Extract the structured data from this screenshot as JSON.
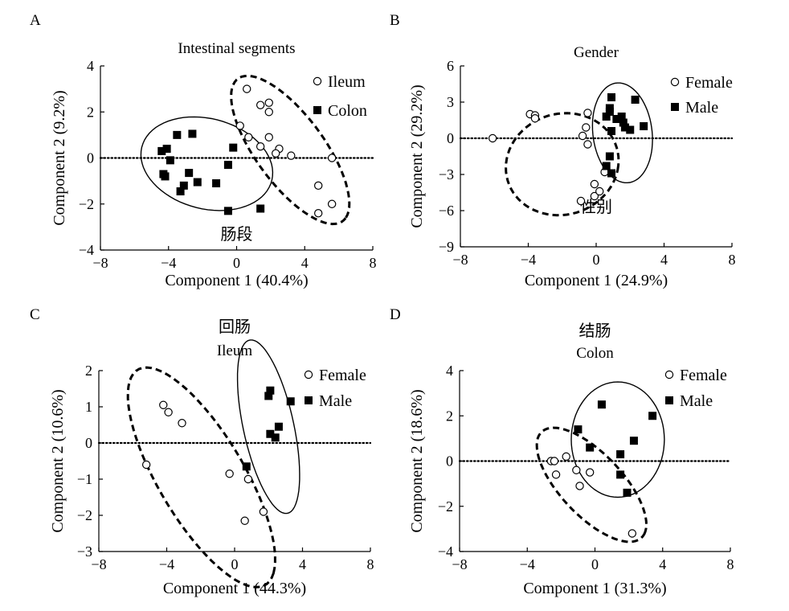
{
  "chart_data": [
    {
      "panel": "A",
      "type": "scatter",
      "title_zh": "肠段",
      "title": "Intestinal segments",
      "xlabel": "Component 1 (40.4%)",
      "ylabel": "Component 2 (9.2%)",
      "xlim": [
        -8,
        8
      ],
      "ylim": [
        -4,
        4
      ],
      "xticks": [
        -8,
        -4,
        0,
        4,
        8
      ],
      "xtick_labels": [
        "−8",
        "−4",
        "0",
        "4",
        "8"
      ],
      "yticks": [
        -4,
        -2,
        0,
        2,
        4
      ],
      "ytick_labels": [
        "−4",
        "−2",
        "0",
        "2",
        "4"
      ],
      "legend_position": "top-right",
      "series": [
        {
          "name": "Ileum",
          "marker": "open-circle",
          "points": [
            [
              0.6,
              3.0
            ],
            [
              1.4,
              2.3
            ],
            [
              1.9,
              2.4
            ],
            [
              1.9,
              2.0
            ],
            [
              0.2,
              1.4
            ],
            [
              0.7,
              0.9
            ],
            [
              1.9,
              0.9
            ],
            [
              1.4,
              0.5
            ],
            [
              2.5,
              0.4
            ],
            [
              2.3,
              0.2
            ],
            [
              3.2,
              0.1
            ],
            [
              5.6,
              0.0
            ],
            [
              4.8,
              -1.2
            ],
            [
              5.6,
              -2.0
            ],
            [
              4.8,
              -2.4
            ]
          ],
          "ellipse": {
            "cx": 3.15,
            "cy": 0.35,
            "rx": 4.4,
            "ry": 1.75,
            "angle_deg": -42,
            "style": "dashed"
          }
        },
        {
          "name": "Colon",
          "marker": "filled-square",
          "points": [
            [
              -4.4,
              0.3
            ],
            [
              -4.1,
              0.4
            ],
            [
              -3.5,
              1.0
            ],
            [
              -2.6,
              1.05
            ],
            [
              -4.3,
              -0.7
            ],
            [
              -4.2,
              -0.8
            ],
            [
              -3.9,
              -0.1
            ],
            [
              -2.8,
              -0.65
            ],
            [
              -3.1,
              -1.2
            ],
            [
              -3.3,
              -1.45
            ],
            [
              -2.3,
              -1.05
            ],
            [
              -1.2,
              -1.1
            ],
            [
              -0.5,
              -0.3
            ],
            [
              -0.2,
              0.45
            ],
            [
              -0.5,
              -2.3
            ],
            [
              1.4,
              -2.2
            ]
          ],
          "ellipse": {
            "cx": -1.75,
            "cy": -0.25,
            "rx": 3.9,
            "ry": 1.98,
            "angle_deg": -8,
            "style": "solid"
          }
        }
      ]
    },
    {
      "panel": "B",
      "type": "scatter",
      "title_zh": "性别",
      "title": "Gender",
      "xlabel": "Component 1 (24.9%)",
      "ylabel": "Component 2 (29.2%)",
      "xlim": [
        -8,
        8
      ],
      "ylim": [
        -9,
        6
      ],
      "xticks": [
        -8,
        -4,
        0,
        4,
        8
      ],
      "xtick_labels": [
        "−8",
        "−4",
        "0",
        "4",
        "8"
      ],
      "yticks": [
        -9,
        -6,
        -3,
        0,
        3,
        6
      ],
      "ytick_labels": [
        "−9",
        "−6",
        "−3",
        "0",
        "3",
        "6"
      ],
      "legend_position": "top-right",
      "series": [
        {
          "name": "Female",
          "marker": "open-circle",
          "points": [
            [
              -6.1,
              0.0
            ],
            [
              -3.9,
              2.0
            ],
            [
              -3.6,
              1.9
            ],
            [
              -3.6,
              1.65
            ],
            [
              -0.5,
              2.1
            ],
            [
              -0.6,
              0.9
            ],
            [
              -0.8,
              0.2
            ],
            [
              -0.5,
              -0.5
            ],
            [
              -0.1,
              -3.8
            ],
            [
              -0.1,
              -4.8
            ],
            [
              0.2,
              -4.4
            ],
            [
              -0.9,
              -5.2
            ],
            [
              0.5,
              -2.8
            ]
          ],
          "ellipse": {
            "cx": -2.0,
            "cy": -2.15,
            "rx": 3.3,
            "ry": 4.25,
            "angle_deg": -8,
            "style": "dashed"
          }
        },
        {
          "name": "Male",
          "marker": "filled-square",
          "points": [
            [
              0.9,
              3.4
            ],
            [
              0.8,
              2.5
            ],
            [
              0.6,
              1.8
            ],
            [
              0.8,
              2.2
            ],
            [
              1.5,
              1.8
            ],
            [
              1.2,
              1.6
            ],
            [
              2.3,
              3.2
            ],
            [
              1.6,
              1.3
            ],
            [
              1.7,
              0.9
            ],
            [
              2.0,
              0.7
            ],
            [
              2.8,
              1.0
            ],
            [
              0.9,
              0.6
            ],
            [
              0.8,
              -1.5
            ],
            [
              0.6,
              -2.3
            ],
            [
              0.9,
              -2.9
            ]
          ],
          "ellipse": {
            "cx": 1.55,
            "cy": 0.45,
            "rx": 1.75,
            "ry": 4.15,
            "angle_deg": 4,
            "style": "solid"
          }
        }
      ]
    },
    {
      "panel": "C",
      "type": "scatter",
      "title_zh": "回肠",
      "title": "Ileum",
      "xlabel": "Component 1 (44.3%)",
      "ylabel": "Component 2 (10.6%)",
      "xlim": [
        -8,
        8
      ],
      "ylim": [
        -3,
        2
      ],
      "xticks": [
        -8,
        -4,
        0,
        4,
        8
      ],
      "xtick_labels": [
        "−8",
        "−4",
        "0",
        "4",
        "8"
      ],
      "yticks": [
        -3,
        -2,
        -1,
        0,
        1,
        2
      ],
      "ytick_labels": [
        "−3",
        "−2",
        "−1",
        "0",
        "1",
        "2"
      ],
      "legend_position": "top-right",
      "series": [
        {
          "name": "Female",
          "marker": "open-circle",
          "points": [
            [
              -4.2,
              1.05
            ],
            [
              -3.9,
              0.85
            ],
            [
              -3.1,
              0.55
            ],
            [
              -5.2,
              -0.6
            ],
            [
              -0.3,
              -0.85
            ],
            [
              0.8,
              -1.0
            ],
            [
              1.7,
              -1.9
            ],
            [
              0.6,
              -2.15
            ]
          ],
          "ellipse": {
            "cx": -1.95,
            "cy": -0.95,
            "rx": 5.0,
            "ry": 1.75,
            "angle_deg": -32,
            "style": "dashed"
          }
        },
        {
          "name": "Male",
          "marker": "filled-square",
          "points": [
            [
              2.1,
              1.45
            ],
            [
              2.0,
              1.3
            ],
            [
              3.3,
              1.15
            ],
            [
              2.6,
              0.45
            ],
            [
              2.1,
              0.25
            ],
            [
              2.4,
              0.15
            ],
            [
              0.7,
              -0.65
            ]
          ],
          "ellipse": {
            "cx": 2.0,
            "cy": 0.45,
            "rx": 1.35,
            "ry": 2.7,
            "angle_deg": 32,
            "style": "solid"
          }
        }
      ]
    },
    {
      "panel": "D",
      "type": "scatter",
      "title_zh": "结肠",
      "title": "Colon",
      "xlabel": "Component 1 (31.3%)",
      "ylabel": "Component 2 (18.6%)",
      "xlim": [
        -8,
        8
      ],
      "ylim": [
        -4,
        4
      ],
      "xticks": [
        -8,
        -4,
        0,
        4,
        8
      ],
      "xtick_labels": [
        "−8",
        "−4",
        "0",
        "4",
        "8"
      ],
      "yticks": [
        -4,
        -2,
        0,
        2,
        4
      ],
      "ytick_labels": [
        "−4",
        "−2",
        "0",
        "2",
        "4"
      ],
      "legend_position": "top-right",
      "series": [
        {
          "name": "Female",
          "marker": "open-circle",
          "points": [
            [
              -2.6,
              0.0
            ],
            [
              -2.4,
              0.0
            ],
            [
              -1.7,
              0.2
            ],
            [
              -1.1,
              -0.4
            ],
            [
              -0.3,
              -0.5
            ],
            [
              -2.3,
              -0.6
            ],
            [
              -0.9,
              -1.1
            ],
            [
              2.2,
              -3.2
            ]
          ],
          "ellipse": {
            "cx": -0.2,
            "cy": -1.05,
            "rx": 3.8,
            "ry": 1.55,
            "angle_deg": -35,
            "style": "dashed"
          }
        },
        {
          "name": "Male",
          "marker": "filled-square",
          "points": [
            [
              0.4,
              2.5
            ],
            [
              -1.0,
              1.4
            ],
            [
              3.4,
              2.0
            ],
            [
              -0.3,
              0.6
            ],
            [
              2.3,
              0.9
            ],
            [
              1.5,
              0.3
            ],
            [
              1.5,
              -0.6
            ],
            [
              1.9,
              -1.4
            ]
          ],
          "ellipse": {
            "cx": 1.35,
            "cy": 0.95,
            "rx": 2.75,
            "ry": 2.55,
            "angle_deg": 0,
            "style": "solid"
          }
        }
      ]
    }
  ]
}
